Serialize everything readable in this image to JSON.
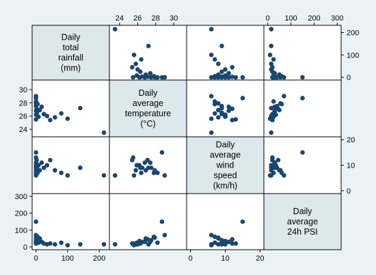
{
  "chart_data": {
    "type": "scatter",
    "kind": "scatter-matrix",
    "grid": false,
    "colors": {
      "marker": "#1a476f",
      "diagonal_fill": "#dde8ec",
      "cell_fill": "#ffffff",
      "background": "#eaf2f3",
      "frame": "#000000"
    },
    "variables": [
      {
        "key": "rainfall",
        "label_lines": [
          "Daily",
          "total",
          "rainfall",
          "(mm)"
        ],
        "range": [
          0,
          220
        ],
        "ticks": [
          0,
          100,
          200
        ],
        "tick_labels": [
          "0",
          "100",
          "200"
        ]
      },
      {
        "key": "temperature",
        "label_lines": [
          "Daily",
          "average",
          "temperature",
          "(°C)"
        ],
        "range": [
          23.3,
          31.0
        ],
        "ticks": [
          24,
          26,
          28,
          30
        ],
        "tick_labels": [
          "24",
          "26",
          "28",
          "30"
        ]
      },
      {
        "key": "wind",
        "label_lines": [
          "Daily",
          "average",
          "wind",
          "speed",
          "(km/h)"
        ],
        "range": [
          0,
          20
        ],
        "ticks": [
          0,
          10,
          20
        ],
        "tick_labels": [
          "0",
          "10",
          "20"
        ]
      },
      {
        "key": "psi",
        "label_lines": [
          "Daily",
          "average",
          "24h PSI"
        ],
        "range": [
          0,
          300
        ],
        "ticks": [
          0,
          100,
          200,
          300
        ],
        "tick_labels": [
          "0",
          "100",
          "200",
          "300"
        ]
      }
    ],
    "axis_tick_placement": {
      "rainfall": "x-bottom",
      "temperature": "x-top, y-left",
      "wind": "x-bottom, y-right",
      "psi": "x-top, y-left"
    },
    "points": {
      "rainfall": [
        0,
        0,
        0,
        0,
        0,
        0,
        0,
        0,
        2,
        3,
        5,
        8,
        12,
        18,
        25,
        35,
        45,
        60,
        80,
        100,
        140,
        215
      ],
      "temperature": [
        27.5,
        28.2,
        26.8,
        29.0,
        25.5,
        27.9,
        26.2,
        28.7,
        27.1,
        26.5,
        27.8,
        25.9,
        26.9,
        27.4,
        26.3,
        26.0,
        25.4,
        25.8,
        26.4,
        25.6,
        27.2,
        23.5
      ],
      "wind": [
        9,
        7,
        11,
        6,
        13,
        8,
        10,
        15,
        12,
        9,
        7,
        10,
        8,
        11,
        9,
        10,
        12,
        8,
        7,
        6,
        9,
        6
      ],
      "psi": [
        40,
        25,
        30,
        70,
        20,
        55,
        35,
        150,
        45,
        30,
        60,
        25,
        50,
        30,
        20,
        15,
        20,
        15,
        25,
        10,
        15,
        15
      ]
    }
  }
}
